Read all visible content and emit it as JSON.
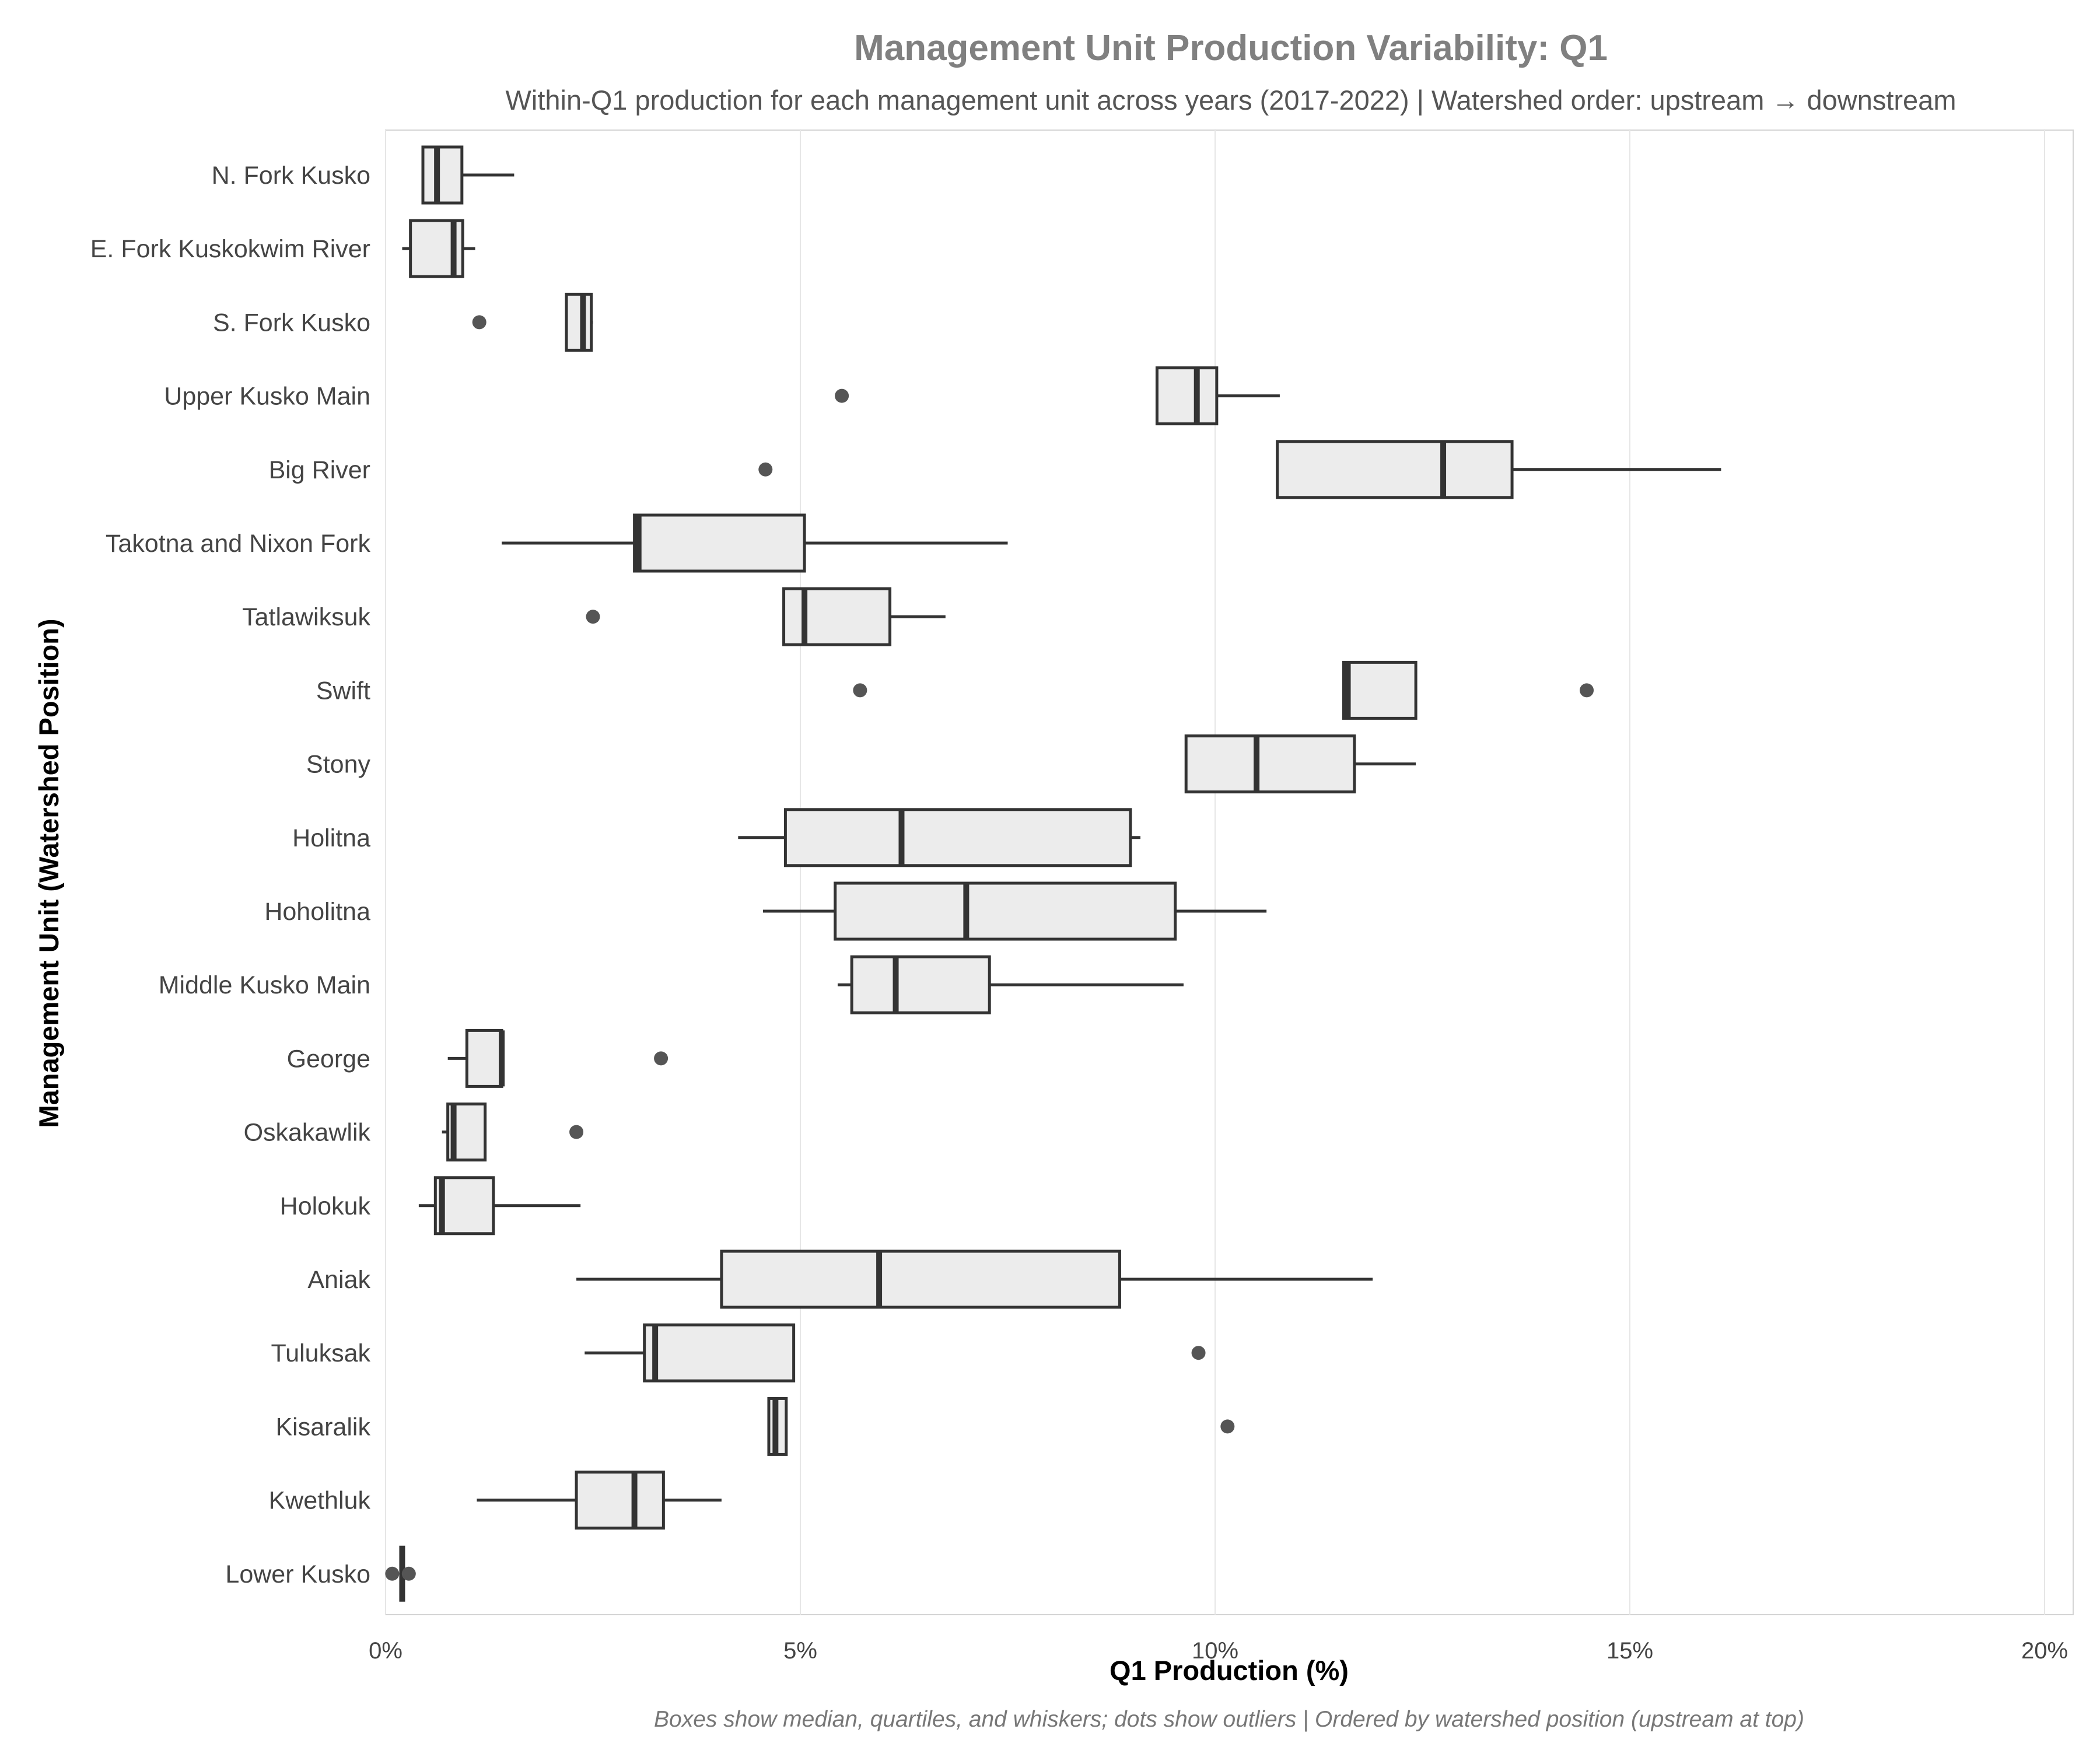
{
  "chart_data": {
    "type": "boxplot",
    "orientation": "horizontal",
    "title": "Management Unit Production Variability: Q1",
    "subtitle": "Within-Q1 production for each management unit across years (2017-2022) | Watershed order: upstream → downstream",
    "xlabel": "Q1 Production (%)",
    "ylabel": "Management Unit (Watershed Position)",
    "caption": "Boxes show median, quartiles, and whiskers; dots show outliers | Ordered by watershed position (upstream at top)",
    "xlim": [
      0,
      20.4
    ],
    "xticks": [
      0,
      5,
      10,
      15,
      20
    ],
    "xtick_labels": [
      "0%",
      "5%",
      "10%",
      "15%",
      "20%"
    ],
    "grid": "vertical",
    "colors": {
      "box_fill": "#ececec",
      "box_edge": "#333333",
      "outlier": "#555555",
      "grid": "#e6e6e6"
    },
    "categories": [
      "N. Fork Kusko",
      "E. Fork Kuskokwim River",
      "S. Fork Kusko",
      "Upper Kusko Main",
      "Big River",
      "Takotna and Nixon Fork",
      "Tatlawiksuk",
      "Swift",
      "Stony",
      "Holitna",
      "Hoholitna",
      "Middle Kusko Main",
      "George",
      "Oskakawlik",
      "Holokuk",
      "Aniak",
      "Tuluksak",
      "Kisaralik",
      "Kwethluk",
      "Lower Kusko"
    ],
    "boxes": [
      {
        "whisker_low": 0.45,
        "q1": 0.45,
        "median": 0.62,
        "q3": 0.92,
        "whisker_high": 1.55,
        "outliers": []
      },
      {
        "whisker_low": 0.2,
        "q1": 0.3,
        "median": 0.82,
        "q3": 0.93,
        "whisker_high": 1.08,
        "outliers": []
      },
      {
        "whisker_low": 2.18,
        "q1": 2.18,
        "median": 2.38,
        "q3": 2.48,
        "whisker_high": 2.5,
        "outliers": [
          1.13
        ]
      },
      {
        "whisker_low": 9.3,
        "q1": 9.3,
        "median": 9.78,
        "q3": 10.02,
        "whisker_high": 10.78,
        "outliers": [
          5.5
        ]
      },
      {
        "whisker_low": 10.75,
        "q1": 10.75,
        "median": 12.75,
        "q3": 13.58,
        "whisker_high": 16.1,
        "outliers": [
          4.58
        ]
      },
      {
        "whisker_low": 1.4,
        "q1": 3.0,
        "median": 3.05,
        "q3": 5.05,
        "whisker_high": 7.5,
        "outliers": []
      },
      {
        "whisker_low": 4.8,
        "q1": 4.8,
        "median": 5.05,
        "q3": 6.08,
        "whisker_high": 6.75,
        "outliers": [
          2.5
        ]
      },
      {
        "whisker_low": 11.55,
        "q1": 11.55,
        "median": 11.6,
        "q3": 12.42,
        "whisker_high": 12.42,
        "outliers": [
          5.72,
          14.48
        ]
      },
      {
        "whisker_low": 9.65,
        "q1": 9.65,
        "median": 10.5,
        "q3": 11.68,
        "whisker_high": 12.42,
        "outliers": []
      },
      {
        "whisker_low": 4.25,
        "q1": 4.82,
        "median": 6.22,
        "q3": 8.98,
        "whisker_high": 9.1,
        "outliers": []
      },
      {
        "whisker_low": 4.55,
        "q1": 5.42,
        "median": 7.0,
        "q3": 9.52,
        "whisker_high": 10.62,
        "outliers": []
      },
      {
        "whisker_low": 5.45,
        "q1": 5.62,
        "median": 6.15,
        "q3": 7.28,
        "whisker_high": 9.62,
        "outliers": []
      },
      {
        "whisker_low": 0.75,
        "q1": 0.98,
        "median": 1.4,
        "q3": 1.4,
        "whisker_high": 1.4,
        "outliers": [
          3.32
        ]
      },
      {
        "whisker_low": 0.68,
        "q1": 0.75,
        "median": 0.82,
        "q3": 1.2,
        "whisker_high": 1.2,
        "outliers": [
          2.3
        ]
      },
      {
        "whisker_low": 0.4,
        "q1": 0.6,
        "median": 0.68,
        "q3": 1.3,
        "whisker_high": 2.35,
        "outliers": []
      },
      {
        "whisker_low": 2.3,
        "q1": 4.05,
        "median": 5.95,
        "q3": 8.85,
        "whisker_high": 11.9,
        "outliers": []
      },
      {
        "whisker_low": 2.4,
        "q1": 3.12,
        "median": 3.25,
        "q3": 4.92,
        "whisker_high": 4.92,
        "outliers": [
          9.8
        ]
      },
      {
        "whisker_low": 4.62,
        "q1": 4.62,
        "median": 4.7,
        "q3": 4.83,
        "whisker_high": 4.83,
        "outliers": [
          10.15
        ]
      },
      {
        "whisker_low": 1.1,
        "q1": 2.3,
        "median": 3.0,
        "q3": 3.35,
        "whisker_high": 4.05,
        "outliers": []
      },
      {
        "whisker_low": 0.2,
        "q1": 0.2,
        "median": 0.2,
        "q3": 0.2,
        "whisker_high": 0.2,
        "outliers": [
          0.08,
          0.28
        ]
      }
    ]
  }
}
